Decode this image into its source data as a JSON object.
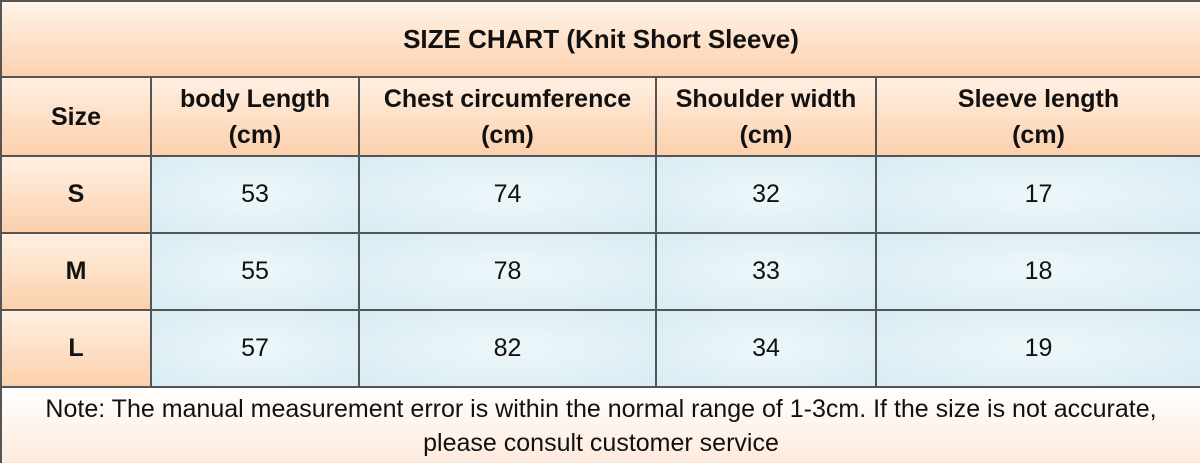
{
  "header": {
    "title": "SIZE CHART  (Knit Short Sleeve)"
  },
  "table": {
    "columns": [
      {
        "name": "Size"
      },
      {
        "name": "body Length",
        "unit": "(cm)"
      },
      {
        "name": "Chest circumference",
        "unit": "(cm)"
      },
      {
        "name": "Shoulder width",
        "unit": "(cm)"
      },
      {
        "name": "Sleeve length",
        "unit": "(cm)"
      }
    ],
    "rows": [
      [
        "S",
        53,
        74,
        32,
        17
      ],
      [
        "M",
        55,
        78,
        33,
        18
      ],
      [
        "L",
        57,
        82,
        34,
        19
      ]
    ]
  },
  "note": "Note: The manual measurement error is within the normal range of 1-3cm. If the size is not accurate, please consult customer service"
}
